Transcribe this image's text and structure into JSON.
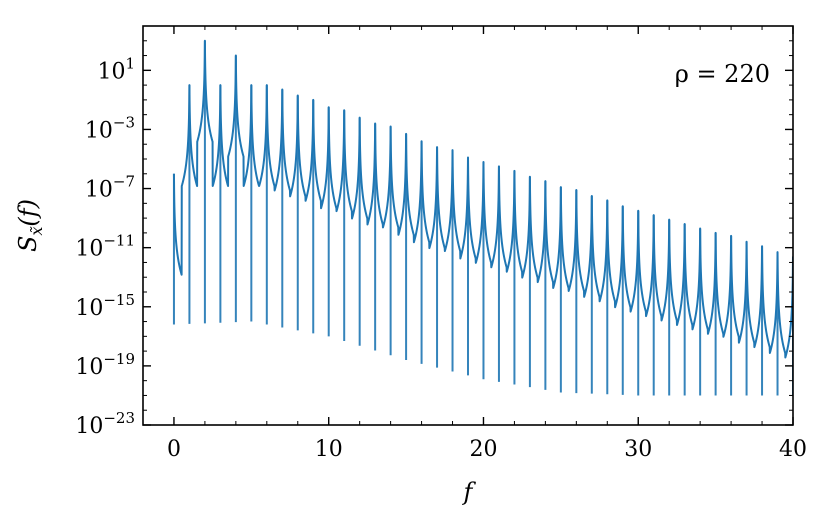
{
  "chart_data": {
    "type": "line",
    "title": "",
    "xlabel": "f",
    "ylabel_main": "S",
    "ylabel_sub": "x̃",
    "ylabel_arg": "(f)",
    "yscale": "log",
    "xlim": [
      -2,
      40
    ],
    "ylim_exponent": [
      -23,
      4
    ],
    "x_ticks": [
      0,
      10,
      20,
      30,
      40
    ],
    "y_ticks_exponent": [
      -23,
      -19,
      -15,
      -11,
      -7,
      -3,
      1
    ],
    "y_tick_base": "10",
    "grid": false,
    "legend": "none",
    "annotation": "ρ = 220",
    "series": [
      {
        "color": "#1f77b4",
        "peaks": [
          {
            "x": 0.0,
            "log10_y": -6.0
          },
          {
            "x": 1.0,
            "log10_y": 0.0
          },
          {
            "x": 2.0,
            "log10_y": 3.0
          },
          {
            "x": 3.0,
            "log10_y": 0.0
          },
          {
            "x": 4.0,
            "log10_y": 2.0
          },
          {
            "x": 5.0,
            "log10_y": 0.0
          },
          {
            "x": 6.0,
            "log10_y": 0.0
          },
          {
            "x": 7.0,
            "log10_y": -0.3
          },
          {
            "x": 8.0,
            "log10_y": -0.7
          },
          {
            "x": 9.0,
            "log10_y": -1.0
          },
          {
            "x": 10.0,
            "log10_y": -1.5
          },
          {
            "x": 11.0,
            "log10_y": -1.7
          },
          {
            "x": 12.0,
            "log10_y": -2.2
          },
          {
            "x": 13.0,
            "log10_y": -2.6
          },
          {
            "x": 14.0,
            "log10_y": -2.8
          },
          {
            "x": 15.0,
            "log10_y": -3.3
          },
          {
            "x": 16.0,
            "log10_y": -3.8
          },
          {
            "x": 17.0,
            "log10_y": -4.2
          },
          {
            "x": 18.0,
            "log10_y": -4.4
          },
          {
            "x": 19.0,
            "log10_y": -4.9
          },
          {
            "x": 20.0,
            "log10_y": -5.2
          },
          {
            "x": 21.0,
            "log10_y": -5.5
          },
          {
            "x": 22.0,
            "log10_y": -5.8
          },
          {
            "x": 23.0,
            "log10_y": -6.2
          },
          {
            "x": 24.0,
            "log10_y": -6.5
          },
          {
            "x": 25.0,
            "log10_y": -6.9
          },
          {
            "x": 26.0,
            "log10_y": -7.1
          },
          {
            "x": 27.0,
            "log10_y": -7.5
          },
          {
            "x": 28.0,
            "log10_y": -7.8
          },
          {
            "x": 29.0,
            "log10_y": -8.2
          },
          {
            "x": 30.0,
            "log10_y": -8.5
          },
          {
            "x": 31.0,
            "log10_y": -8.8
          },
          {
            "x": 32.0,
            "log10_y": -9.1
          },
          {
            "x": 33.0,
            "log10_y": -9.4
          },
          {
            "x": 34.0,
            "log10_y": -9.7
          },
          {
            "x": 35.0,
            "log10_y": -10.0
          },
          {
            "x": 36.0,
            "log10_y": -10.2
          },
          {
            "x": 37.0,
            "log10_y": -10.6
          },
          {
            "x": 38.0,
            "log10_y": -10.9
          },
          {
            "x": 39.0,
            "log10_y": -11.3
          },
          {
            "x": 40.0,
            "log10_y": -11.6
          }
        ],
        "floor_log10": [
          {
            "x": 0.0,
            "log10_y": -16.2
          },
          {
            "x": 5.0,
            "log10_y": -16.0
          },
          {
            "x": 10.0,
            "log10_y": -17.0
          },
          {
            "x": 15.0,
            "log10_y": -18.6
          },
          {
            "x": 20.0,
            "log10_y": -19.9
          },
          {
            "x": 25.0,
            "log10_y": -20.8
          },
          {
            "x": 30.0,
            "log10_y": -21.0
          },
          {
            "x": 35.0,
            "log10_y": -21.0
          },
          {
            "x": 40.0,
            "log10_y": -21.0
          }
        ]
      }
    ]
  }
}
